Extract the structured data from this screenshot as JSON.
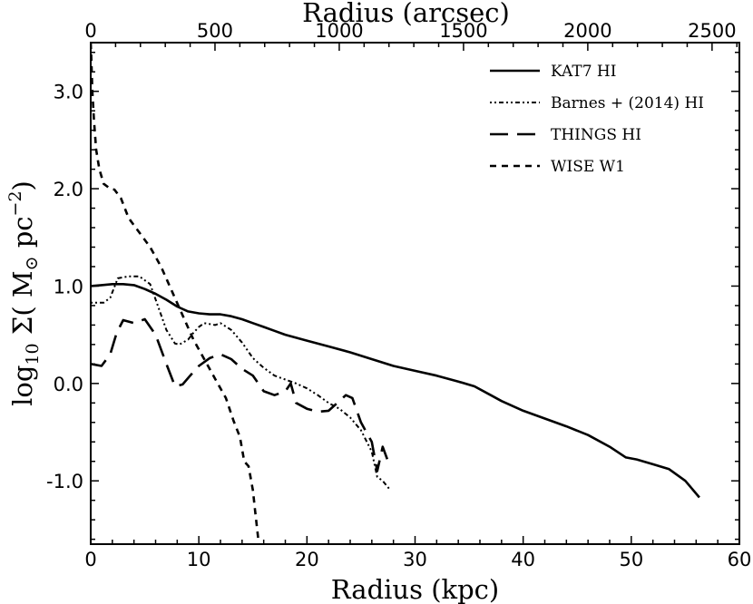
{
  "chart_data": {
    "type": "line",
    "xlabel": "Radius (kpc)",
    "x2label": "Radius (arcsec)",
    "ylabel_parts": {
      "prefix": "log",
      "sub": "10",
      "main": " Σ( M",
      "sun": "⊙",
      "unit": " pc",
      "sup": "−2",
      "close": ")"
    },
    "xlim": [
      0,
      60
    ],
    "x2lim": [
      0,
      2610
    ],
    "ylim": [
      -1.65,
      3.5
    ],
    "xticks": [
      0,
      10,
      20,
      30,
      40,
      50,
      60
    ],
    "xtick_labels": [
      "0",
      "10",
      "20",
      "30",
      "40",
      "50",
      "60"
    ],
    "x2ticks": [
      0,
      500,
      1000,
      1500,
      2000,
      2500
    ],
    "x2tick_labels": [
      "0",
      "500",
      "1000",
      "1500",
      "2000",
      "2500"
    ],
    "yticks": [
      -1.0,
      0.0,
      1.0,
      2.0,
      3.0
    ],
    "ytick_labels": [
      "-1.0",
      "0.0",
      "1.0",
      "2.0",
      "3.0"
    ],
    "grid": false,
    "legend_position": "top-right",
    "series": [
      {
        "name": "KAT7 HI",
        "dash": "solid",
        "x": [
          0,
          1,
          2,
          3,
          4,
          5,
          6,
          7,
          8,
          9,
          10,
          11,
          12,
          13,
          14,
          15,
          16,
          17,
          18,
          19,
          20,
          22,
          24,
          26,
          28,
          30,
          32,
          34,
          35.5,
          37,
          38,
          40,
          42,
          44,
          46,
          48,
          49.5,
          50.5,
          52,
          53.5,
          55,
          56.3
        ],
        "y": [
          1.0,
          1.01,
          1.02,
          1.02,
          1.01,
          0.97,
          0.92,
          0.86,
          0.79,
          0.74,
          0.72,
          0.71,
          0.71,
          0.69,
          0.66,
          0.62,
          0.58,
          0.54,
          0.5,
          0.47,
          0.44,
          0.38,
          0.32,
          0.25,
          0.18,
          0.13,
          0.08,
          0.02,
          -0.03,
          -0.12,
          -0.18,
          -0.28,
          -0.36,
          -0.44,
          -0.53,
          -0.65,
          -0.76,
          -0.78,
          -0.83,
          -0.88,
          -1.0,
          -1.17
        ]
      },
      {
        "name": "Barnes + (2014) HI",
        "dash": "dashdot",
        "x": [
          0,
          1.2,
          1.8,
          2.5,
          3.5,
          4.5,
          5.5,
          6.2,
          7,
          7.8,
          8.2,
          9,
          9.5,
          10,
          10.5,
          11,
          11.5,
          12,
          13,
          14,
          15,
          16,
          17,
          18,
          19,
          20,
          21,
          22,
          23,
          24,
          25,
          26,
          26.5,
          27,
          27.6
        ],
        "y": [
          0.83,
          0.83,
          0.88,
          1.08,
          1.1,
          1.1,
          1.02,
          0.8,
          0.55,
          0.41,
          0.4,
          0.45,
          0.52,
          0.58,
          0.62,
          0.61,
          0.6,
          0.62,
          0.55,
          0.42,
          0.26,
          0.16,
          0.08,
          0.04,
          0.0,
          -0.05,
          -0.12,
          -0.2,
          -0.26,
          -0.35,
          -0.48,
          -0.7,
          -0.96,
          -1.0,
          -1.08
        ]
      },
      {
        "name": "THINGS HI",
        "dash": "dashed",
        "x": [
          0,
          1,
          1.8,
          2.4,
          3,
          4,
          5,
          6,
          7,
          7.8,
          8.5,
          9.2,
          10,
          11,
          12,
          13,
          14,
          15,
          16,
          17,
          18,
          18.5,
          19,
          20,
          21,
          22,
          23,
          23.6,
          24.2,
          25,
          26,
          26.5,
          27,
          27.5
        ],
        "y": [
          0.2,
          0.18,
          0.3,
          0.52,
          0.65,
          0.62,
          0.66,
          0.5,
          0.2,
          -0.03,
          -0.01,
          0.08,
          0.18,
          0.26,
          0.3,
          0.25,
          0.15,
          0.08,
          -0.08,
          -0.12,
          -0.08,
          0.0,
          -0.2,
          -0.26,
          -0.29,
          -0.28,
          -0.18,
          -0.12,
          -0.15,
          -0.4,
          -0.6,
          -0.9,
          -0.65,
          -0.8
        ]
      },
      {
        "name": "WISE W1",
        "dash": "dotted",
        "x": [
          0,
          0.05,
          0.15,
          0.3,
          0.5,
          0.8,
          1.2,
          1.8,
          2.2,
          2.8,
          3.5,
          4.5,
          5.5,
          6.5,
          7.5,
          8.5,
          9.5,
          10.5,
          11.5,
          12.5,
          13.2,
          13.8,
          14.2,
          14.6,
          15.0,
          15.2,
          15.4,
          15.6
        ],
        "y": [
          3.5,
          3.35,
          3.0,
          2.7,
          2.4,
          2.2,
          2.05,
          2.0,
          1.99,
          1.9,
          1.7,
          1.55,
          1.4,
          1.2,
          0.95,
          0.7,
          0.45,
          0.25,
          0.05,
          -0.15,
          -0.38,
          -0.55,
          -0.8,
          -0.85,
          -1.1,
          -1.3,
          -1.5,
          -1.7
        ]
      }
    ]
  },
  "colors": {
    "line": "#000000",
    "background": "#ffffff"
  }
}
